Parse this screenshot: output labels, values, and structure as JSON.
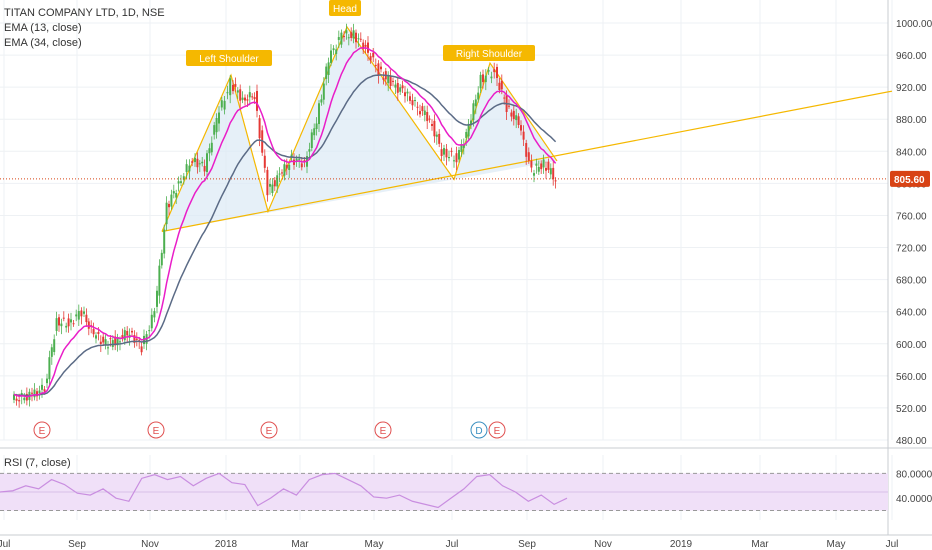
{
  "symbol_title": "TITAN COMPANY LTD, 1D, NSE",
  "indicators": [
    "EMA (13, close)",
    "EMA (34, close)"
  ],
  "rsi_label": "RSI (7, close)",
  "last_price": "805.60",
  "colors": {
    "up": "#4caf50",
    "down": "#e53935",
    "ema13": "#e91ec8",
    "ema34": "#5b6b86",
    "pattern": "#f5b800",
    "pattern_fill": "#dbe9f5",
    "rsi_line": "#c98ee0",
    "rsi_band": "#f0e0f8",
    "earnings": "#e05050",
    "dividend": "#3a8fc0",
    "price_label": "#d84315"
  },
  "chart_data": {
    "type": "candlestick",
    "title": "TITAN COMPANY LTD, 1D, NSE",
    "ylim": [
      480,
      1020
    ],
    "y_ticks": [
      "1000.00",
      "960.00",
      "920.00",
      "880.00",
      "840.00",
      "800.00",
      "760.00",
      "720.00",
      "680.00",
      "640.00",
      "600.00",
      "560.00",
      "520.00",
      "480.00"
    ],
    "x_ticks": [
      "Jul",
      "Sep",
      "Nov",
      "2018",
      "Mar",
      "May",
      "Jul",
      "Sep",
      "Nov",
      "2019",
      "Mar",
      "May",
      "Jul"
    ],
    "price_path": [
      [
        "Jul",
        530
      ],
      [
        "Jul",
        535
      ],
      [
        "Aug",
        545
      ],
      [
        "Aug",
        628
      ],
      [
        "Aug",
        625
      ],
      [
        "Sep",
        640
      ],
      [
        "Sep",
        612
      ],
      [
        "Sep",
        600
      ],
      [
        "Oct",
        605
      ],
      [
        "Oct",
        615
      ],
      [
        "Oct",
        595
      ],
      [
        "Nov",
        640
      ],
      [
        "Nov",
        770
      ],
      [
        "Nov",
        800
      ],
      [
        "Dec",
        830
      ],
      [
        "Dec",
        820
      ],
      [
        "Dec",
        880
      ],
      [
        "Jan",
        925
      ],
      [
        "Jan",
        905
      ],
      [
        "Jan",
        910
      ],
      [
        "Feb",
        790
      ],
      [
        "Feb",
        810
      ],
      [
        "Feb",
        830
      ],
      [
        "Mar",
        825
      ],
      [
        "Mar",
        880
      ],
      [
        "Mar",
        955
      ],
      [
        "Apr",
        985
      ],
      [
        "Apr",
        985
      ],
      [
        "Apr",
        970
      ],
      [
        "May",
        940
      ],
      [
        "May",
        925
      ],
      [
        "May",
        915
      ],
      [
        "Jun",
        895
      ],
      [
        "Jun",
        880
      ],
      [
        "Jun",
        840
      ],
      [
        "Jul",
        830
      ],
      [
        "Jul",
        870
      ],
      [
        "Jul",
        930
      ],
      [
        "Aug",
        940
      ],
      [
        "Aug",
        895
      ],
      [
        "Aug",
        875
      ],
      [
        "Sep",
        815
      ],
      [
        "Sep",
        825
      ],
      [
        "Sep",
        805.6
      ]
    ],
    "last_price": 805.6,
    "series": [
      {
        "name": "EMA (13, close)"
      },
      {
        "name": "EMA (34, close)"
      }
    ],
    "pattern": {
      "labels": [
        "Left Shoulder",
        "Head",
        "Right Shoulder"
      ],
      "points": [
        [
          "Nov",
          740
        ],
        [
          "Jan",
          935
        ],
        [
          "Feb",
          765
        ],
        [
          "Apr",
          995
        ],
        [
          "Jul",
          805
        ],
        [
          "Aug",
          950
        ],
        [
          "Sep",
          828
        ]
      ],
      "neckline": [
        [
          "Nov",
          740
        ],
        [
          "Jul 2019",
          915
        ]
      ]
    },
    "events": [
      {
        "month": "Aug",
        "letter": "E"
      },
      {
        "month": "Nov",
        "letter": "E"
      },
      {
        "month": "Feb",
        "letter": "E"
      },
      {
        "month": "Apr",
        "letter": "E"
      },
      {
        "month": "Jul",
        "letter": "D"
      },
      {
        "month": "Jul",
        "letter": "E"
      }
    ],
    "rsi": {
      "ylim": [
        0,
        100
      ],
      "y_ticks": [
        "80.0000",
        "40.0000"
      ],
      "band": [
        20,
        80
      ],
      "values": [
        50,
        52,
        60,
        55,
        70,
        62,
        48,
        45,
        55,
        40,
        35,
        72,
        78,
        70,
        75,
        60,
        72,
        80,
        65,
        62,
        28,
        40,
        55,
        45,
        70,
        78,
        80,
        70,
        60,
        42,
        40,
        45,
        35,
        30,
        25,
        40,
        55,
        75,
        78,
        60,
        50,
        35,
        45,
        30,
        40
      ]
    }
  }
}
